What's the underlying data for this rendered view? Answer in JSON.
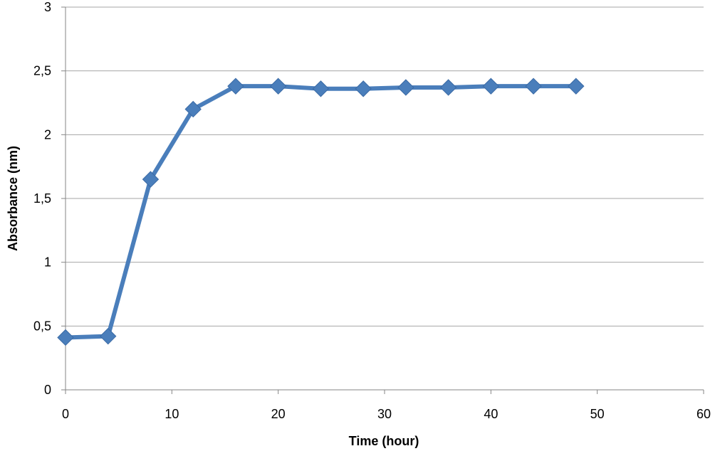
{
  "chart_data": {
    "type": "line",
    "title": "",
    "xlabel": "Time (hour)",
    "ylabel": "Absorbance (nm)",
    "xlim": [
      0,
      60
    ],
    "ylim": [
      0,
      3
    ],
    "x_ticks": [
      0,
      10,
      20,
      30,
      40,
      50,
      60
    ],
    "x_tick_labels": [
      "0",
      "10",
      "20",
      "30",
      "40",
      "50",
      "60"
    ],
    "y_ticks": [
      0,
      0.5,
      1,
      1.5,
      2,
      2.5,
      3
    ],
    "y_tick_labels": [
      "0",
      "0,5",
      "1",
      "1,5",
      "2",
      "2,5",
      "3"
    ],
    "grid": "horizontal",
    "legend": "none",
    "marker": "diamond",
    "colors": {
      "series": "#4a7ebb",
      "grid": "#a6a6a6",
      "axis": "#868686"
    },
    "series": [
      {
        "x": [
          0,
          4,
          8,
          12,
          16,
          20,
          24,
          28,
          32,
          36,
          40,
          44,
          48
        ],
        "values": [
          0.41,
          0.42,
          1.65,
          2.2,
          2.38,
          2.38,
          2.36,
          2.36,
          2.37,
          2.37,
          2.38,
          2.38,
          2.38
        ]
      }
    ]
  }
}
